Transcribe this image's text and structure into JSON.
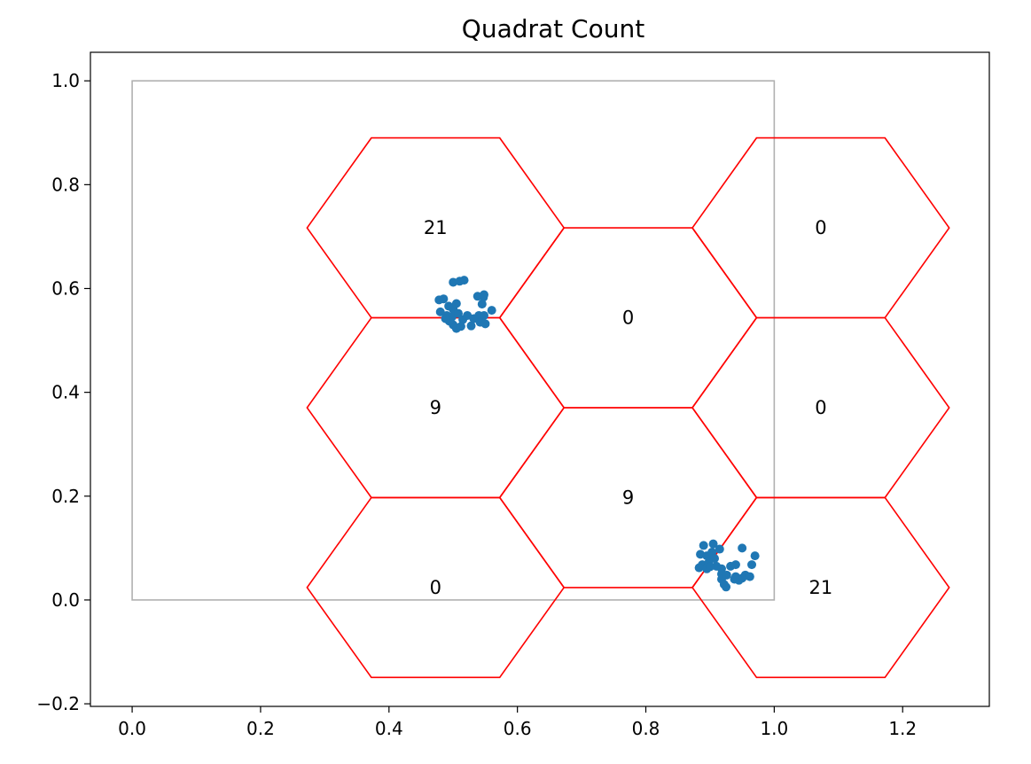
{
  "chart_data": {
    "type": "scatter",
    "title": "Quadrat Count",
    "xlabel": "",
    "ylabel": "",
    "xlim": [
      -0.065,
      1.335
    ],
    "ylim": [
      -0.205,
      1.055
    ],
    "x_ticks": [
      0.0,
      0.2,
      0.4,
      0.6,
      0.8,
      1.0,
      1.2
    ],
    "x_tick_labels": [
      "0.0",
      "0.2",
      "0.4",
      "0.6",
      "0.8",
      "1.0",
      "1.2"
    ],
    "y_ticks": [
      -0.2,
      0.0,
      0.2,
      0.4,
      0.6,
      0.8,
      1.0
    ],
    "y_tick_labels": [
      "−0.2",
      "0.0",
      "0.2",
      "0.4",
      "0.6",
      "0.8",
      "1.0"
    ],
    "grid": false,
    "colors": {
      "points": "#1f77b4",
      "hexagons": "#ff0000",
      "window": "#b0b0b0",
      "axes": "#000000"
    },
    "window": {
      "x": [
        0.0,
        1.0
      ],
      "y": [
        0.0,
        1.0
      ]
    },
    "hexagon_size": 0.2,
    "hexagons": [
      {
        "cx": 0.4725,
        "cy": 0.7168,
        "count": "21"
      },
      {
        "cx": 0.4725,
        "cy": 0.3704,
        "count": "9"
      },
      {
        "cx": 0.4725,
        "cy": 0.024,
        "count": "0"
      },
      {
        "cx": 0.7725,
        "cy": 0.5436,
        "count": "0"
      },
      {
        "cx": 0.7725,
        "cy": 0.1972,
        "count": "9"
      },
      {
        "cx": 1.0725,
        "cy": 0.7168,
        "count": "0"
      },
      {
        "cx": 1.0725,
        "cy": 0.3704,
        "count": "0"
      },
      {
        "cx": 1.0725,
        "cy": 0.024,
        "count": "21"
      }
    ],
    "series": [
      {
        "points": [
          [
            0.5,
            0.612
          ],
          [
            0.51,
            0.614
          ],
          [
            0.517,
            0.616
          ],
          [
            0.478,
            0.578
          ],
          [
            0.485,
            0.58
          ],
          [
            0.493,
            0.566
          ],
          [
            0.5,
            0.56
          ],
          [
            0.505,
            0.571
          ],
          [
            0.48,
            0.555
          ],
          [
            0.49,
            0.548
          ],
          [
            0.498,
            0.545
          ],
          [
            0.508,
            0.552
          ],
          [
            0.515,
            0.54
          ],
          [
            0.522,
            0.548
          ],
          [
            0.528,
            0.528
          ],
          [
            0.5,
            0.53
          ],
          [
            0.505,
            0.523
          ],
          [
            0.512,
            0.527
          ],
          [
            0.538,
            0.585
          ],
          [
            0.547,
            0.583
          ],
          [
            0.548,
            0.588
          ],
          [
            0.545,
            0.57
          ],
          [
            0.54,
            0.548
          ],
          [
            0.548,
            0.548
          ],
          [
            0.542,
            0.535
          ],
          [
            0.55,
            0.532
          ],
          [
            0.56,
            0.558
          ],
          [
            0.494,
            0.537
          ],
          [
            0.488,
            0.542
          ],
          [
            0.532,
            0.542
          ],
          [
            0.89,
            0.105
          ],
          [
            0.905,
            0.108
          ],
          [
            0.885,
            0.088
          ],
          [
            0.895,
            0.085
          ],
          [
            0.903,
            0.092
          ],
          [
            0.907,
            0.08
          ],
          [
            0.915,
            0.098
          ],
          [
            0.888,
            0.068
          ],
          [
            0.883,
            0.062
          ],
          [
            0.895,
            0.06
          ],
          [
            0.898,
            0.072
          ],
          [
            0.91,
            0.065
          ],
          [
            0.918,
            0.06
          ],
          [
            0.918,
            0.05
          ],
          [
            0.918,
            0.04
          ],
          [
            0.922,
            0.03
          ],
          [
            0.925,
            0.025
          ],
          [
            0.932,
            0.065
          ],
          [
            0.94,
            0.068
          ],
          [
            0.94,
            0.045
          ],
          [
            0.945,
            0.038
          ],
          [
            0.95,
            0.042
          ],
          [
            0.95,
            0.1
          ],
          [
            0.955,
            0.048
          ],
          [
            0.962,
            0.045
          ],
          [
            0.965,
            0.068
          ],
          [
            0.97,
            0.085
          ],
          [
            0.938,
            0.04
          ],
          [
            0.926,
            0.048
          ],
          [
            0.9,
            0.064
          ]
        ]
      }
    ]
  }
}
